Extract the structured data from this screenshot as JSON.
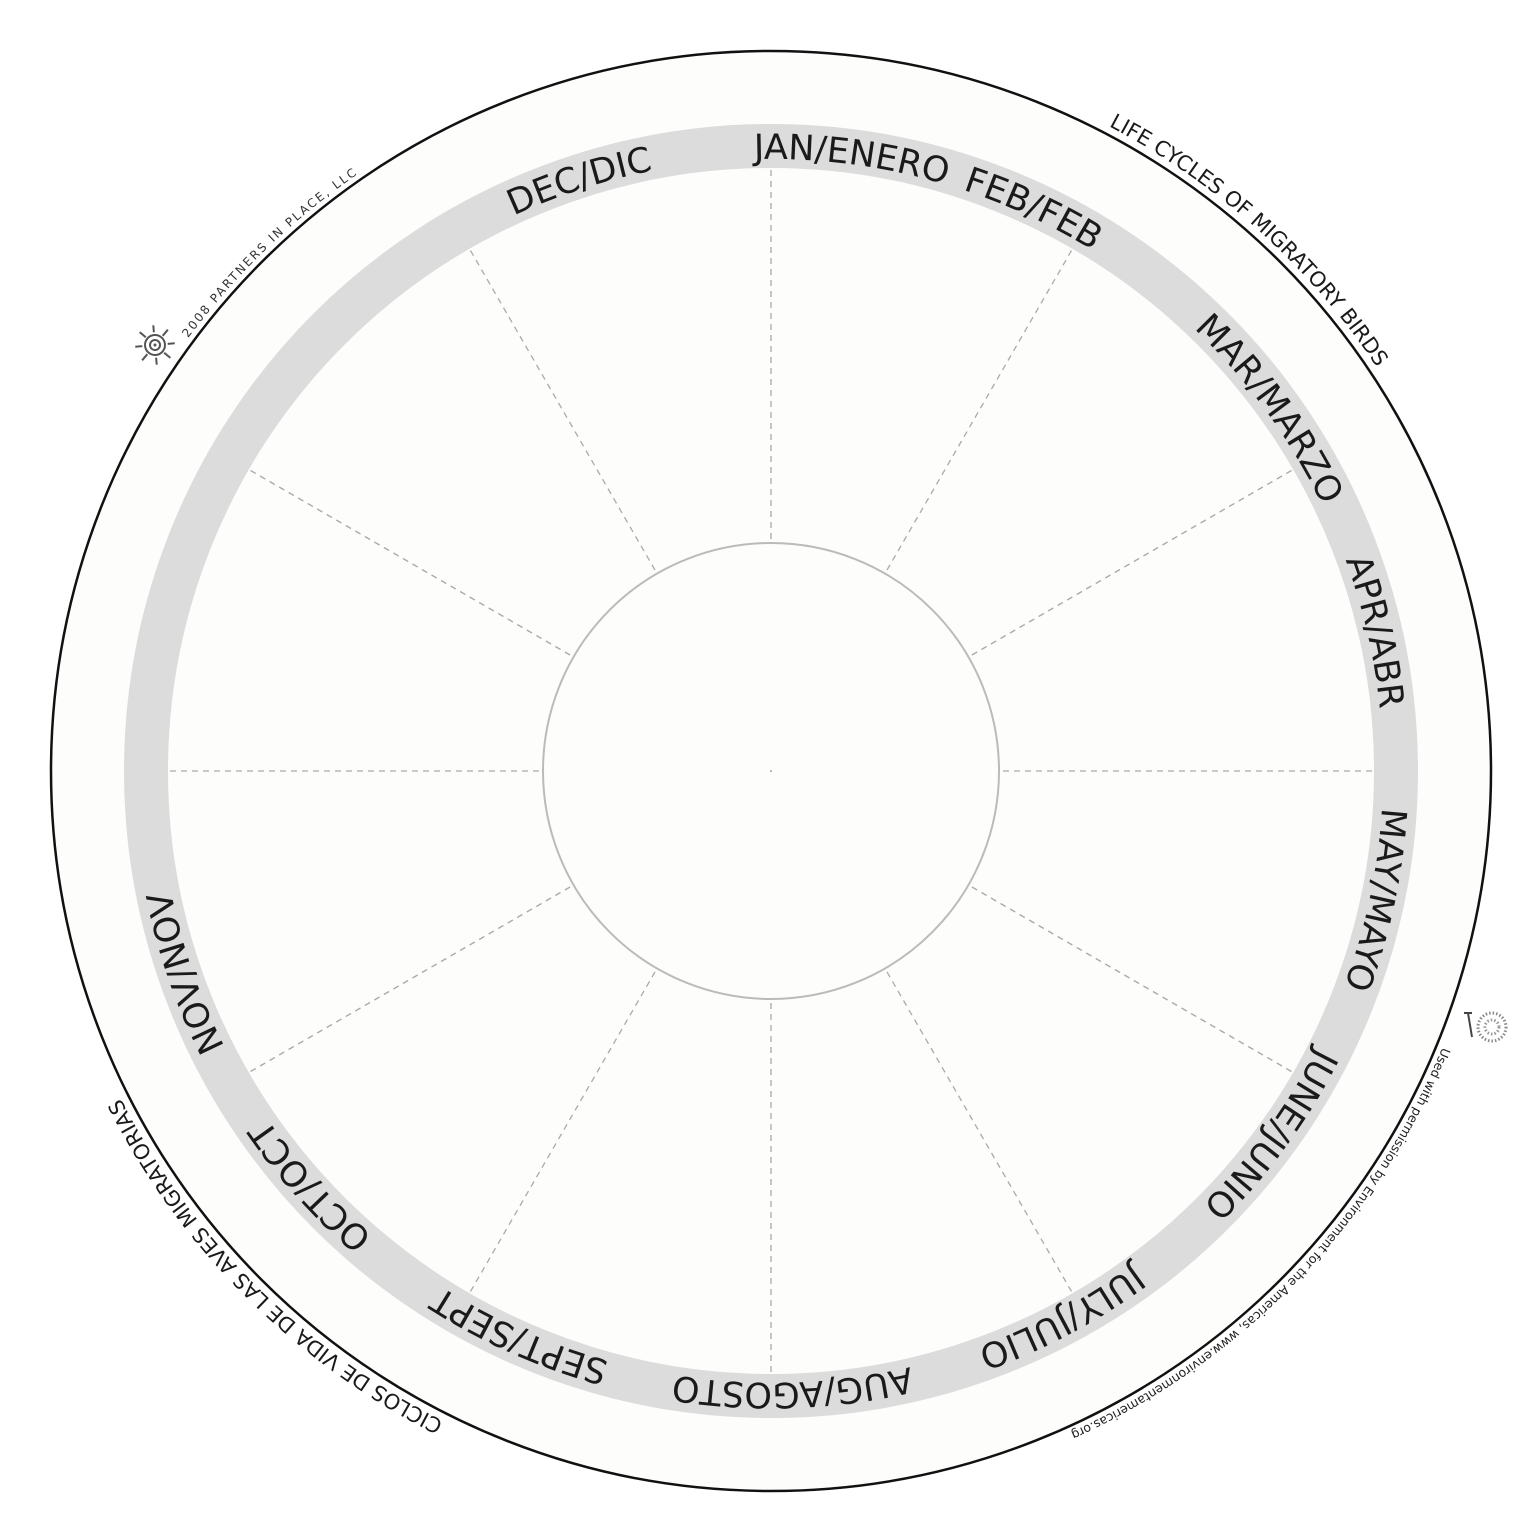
{
  "title": "LIFE CYCLES OF MIGRATORY BIRDS",
  "title_es": "CICLOS DE VIDA DE LAS AVES MIGRATORIAS",
  "credit": "2008 PARTNERS IN PLACE, LLC",
  "permission": "Used with permission by Environment for the Americas, www.environmentamericas.org",
  "months": [
    {
      "label": "JAN/ENERO"
    },
    {
      "label": "FEB/FEB"
    },
    {
      "label": "MAR/MARZO"
    },
    {
      "label": "APR/ABR"
    },
    {
      "label": "MAY/MAYO"
    },
    {
      "label": "JUNE/JUNIO"
    },
    {
      "label": "JULY/JULIO"
    },
    {
      "label": "AUG/AGOSTO"
    },
    {
      "label": "SEPT/SEPT"
    },
    {
      "label": "OCT/OCT"
    },
    {
      "label": "NOV/NOV"
    },
    {
      "label": "DEC/DIC"
    }
  ],
  "icons": [
    "spiral-sun-logo-icon",
    "tree-bird-logo-icon"
  ],
  "colors": {
    "ring": "#dcdcdc",
    "outline": "#111111",
    "divider": "#aaaaaa",
    "background": "#fdfdfb"
  }
}
